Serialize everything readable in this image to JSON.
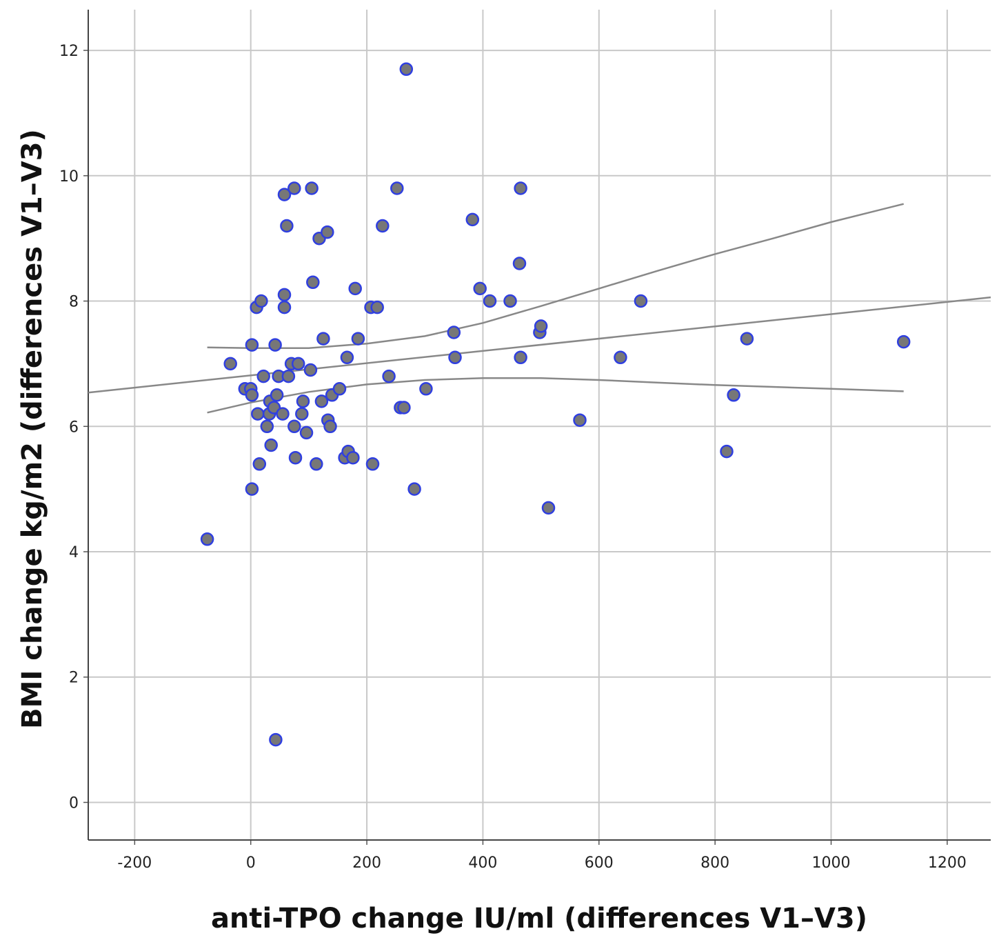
{
  "chart_data": {
    "type": "scatter",
    "title": "",
    "xlabel": "anti-TPO change IU/ml (differences V1–V3)",
    "ylabel": "BMI change kg/m2 (differences V1–V3)",
    "xlim": [
      -280,
      1275
    ],
    "ylim": [
      -0.6,
      12.65
    ],
    "xticks": [
      -200,
      0,
      200,
      400,
      600,
      800,
      1000,
      1200
    ],
    "yticks": [
      0,
      2,
      4,
      6,
      8,
      10,
      12
    ],
    "grid": true,
    "point_color": "#777777",
    "point_edge_color": "#2f3fe0",
    "line_color": "#888888",
    "points": [
      {
        "x": -75,
        "y": 4.2
      },
      {
        "x": -35,
        "y": 7.0
      },
      {
        "x": -10,
        "y": 6.6
      },
      {
        "x": 0,
        "y": 6.6
      },
      {
        "x": 2,
        "y": 6.5
      },
      {
        "x": 2,
        "y": 7.3
      },
      {
        "x": 2,
        "y": 5.0
      },
      {
        "x": 10,
        "y": 7.9
      },
      {
        "x": 12,
        "y": 6.2
      },
      {
        "x": 15,
        "y": 5.4
      },
      {
        "x": 18,
        "y": 8.0
      },
      {
        "x": 22,
        "y": 6.8
      },
      {
        "x": 28,
        "y": 6.0
      },
      {
        "x": 32,
        "y": 6.2
      },
      {
        "x": 33,
        "y": 6.4
      },
      {
        "x": 35,
        "y": 5.7
      },
      {
        "x": 40,
        "y": 6.3
      },
      {
        "x": 42,
        "y": 7.3
      },
      {
        "x": 43,
        "y": 1.0
      },
      {
        "x": 45,
        "y": 6.5
      },
      {
        "x": 48,
        "y": 6.8
      },
      {
        "x": 55,
        "y": 6.2
      },
      {
        "x": 58,
        "y": 9.7
      },
      {
        "x": 58,
        "y": 8.1
      },
      {
        "x": 58,
        "y": 7.9
      },
      {
        "x": 62,
        "y": 9.2
      },
      {
        "x": 65,
        "y": 6.8
      },
      {
        "x": 70,
        "y": 7.0
      },
      {
        "x": 75,
        "y": 9.8
      },
      {
        "x": 75,
        "y": 6.0
      },
      {
        "x": 77,
        "y": 5.5
      },
      {
        "x": 82,
        "y": 7.0
      },
      {
        "x": 88,
        "y": 6.2
      },
      {
        "x": 90,
        "y": 6.4
      },
      {
        "x": 96,
        "y": 5.9
      },
      {
        "x": 103,
        "y": 6.9
      },
      {
        "x": 105,
        "y": 9.8
      },
      {
        "x": 107,
        "y": 8.3
      },
      {
        "x": 113,
        "y": 5.4
      },
      {
        "x": 118,
        "y": 9.0
      },
      {
        "x": 122,
        "y": 6.4
      },
      {
        "x": 125,
        "y": 7.4
      },
      {
        "x": 132,
        "y": 9.1
      },
      {
        "x": 133,
        "y": 6.1
      },
      {
        "x": 137,
        "y": 6.0
      },
      {
        "x": 140,
        "y": 6.5
      },
      {
        "x": 153,
        "y": 6.6
      },
      {
        "x": 162,
        "y": 5.5
      },
      {
        "x": 166,
        "y": 7.1
      },
      {
        "x": 168,
        "y": 5.6
      },
      {
        "x": 176,
        "y": 5.5
      },
      {
        "x": 180,
        "y": 8.2
      },
      {
        "x": 185,
        "y": 7.4
      },
      {
        "x": 207,
        "y": 7.9
      },
      {
        "x": 210,
        "y": 5.4
      },
      {
        "x": 218,
        "y": 7.9
      },
      {
        "x": 227,
        "y": 9.2
      },
      {
        "x": 238,
        "y": 6.8
      },
      {
        "x": 252,
        "y": 9.8
      },
      {
        "x": 258,
        "y": 6.3
      },
      {
        "x": 264,
        "y": 6.3
      },
      {
        "x": 268,
        "y": 11.7
      },
      {
        "x": 282,
        "y": 5.0
      },
      {
        "x": 302,
        "y": 6.6
      },
      {
        "x": 350,
        "y": 7.5
      },
      {
        "x": 352,
        "y": 7.1
      },
      {
        "x": 382,
        "y": 9.3
      },
      {
        "x": 395,
        "y": 8.2
      },
      {
        "x": 412,
        "y": 8.0
      },
      {
        "x": 447,
        "y": 8.0
      },
      {
        "x": 463,
        "y": 8.6
      },
      {
        "x": 465,
        "y": 7.1
      },
      {
        "x": 465,
        "y": 9.8
      },
      {
        "x": 498,
        "y": 7.5
      },
      {
        "x": 500,
        "y": 7.6
      },
      {
        "x": 513,
        "y": 4.7
      },
      {
        "x": 567,
        "y": 6.1
      },
      {
        "x": 637,
        "y": 7.1
      },
      {
        "x": 672,
        "y": 8.0
      },
      {
        "x": 820,
        "y": 5.6
      },
      {
        "x": 832,
        "y": 6.5
      },
      {
        "x": 855,
        "y": 7.4
      },
      {
        "x": 1125,
        "y": 7.35
      }
    ],
    "fit_line": [
      {
        "x": -280,
        "y": 6.54
      },
      {
        "x": 1275,
        "y": 8.06
      }
    ],
    "ci_upper": [
      {
        "x": -75,
        "y": 7.26
      },
      {
        "x": 0,
        "y": 7.25
      },
      {
        "x": 100,
        "y": 7.25
      },
      {
        "x": 200,
        "y": 7.32
      },
      {
        "x": 300,
        "y": 7.44
      },
      {
        "x": 400,
        "y": 7.65
      },
      {
        "x": 500,
        "y": 7.92
      },
      {
        "x": 600,
        "y": 8.2
      },
      {
        "x": 700,
        "y": 8.48
      },
      {
        "x": 800,
        "y": 8.75
      },
      {
        "x": 900,
        "y": 9.0
      },
      {
        "x": 1000,
        "y": 9.26
      },
      {
        "x": 1125,
        "y": 9.55
      }
    ],
    "ci_lower": [
      {
        "x": -75,
        "y": 6.22
      },
      {
        "x": 0,
        "y": 6.38
      },
      {
        "x": 100,
        "y": 6.55
      },
      {
        "x": 200,
        "y": 6.67
      },
      {
        "x": 300,
        "y": 6.74
      },
      {
        "x": 400,
        "y": 6.77
      },
      {
        "x": 500,
        "y": 6.77
      },
      {
        "x": 600,
        "y": 6.74
      },
      {
        "x": 700,
        "y": 6.7
      },
      {
        "x": 800,
        "y": 6.66
      },
      {
        "x": 900,
        "y": 6.63
      },
      {
        "x": 1000,
        "y": 6.6
      },
      {
        "x": 1125,
        "y": 6.56
      }
    ]
  }
}
